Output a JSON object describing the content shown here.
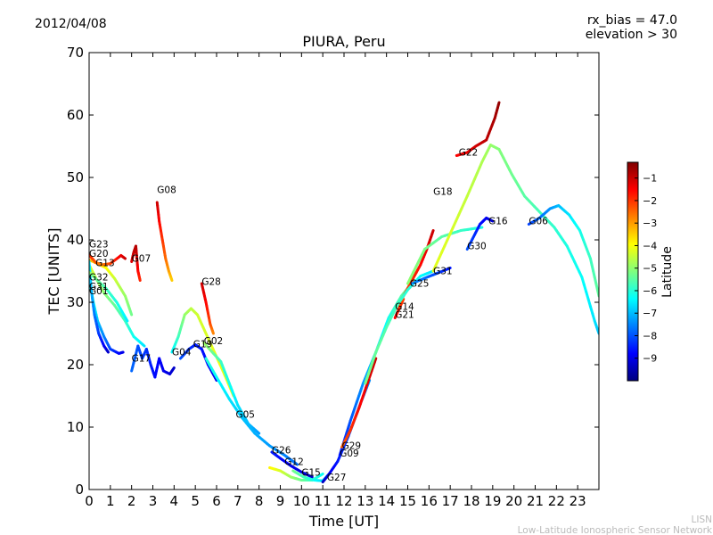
{
  "header": {
    "date": "2012/04/08",
    "rx_bias": "rx_bias = 47.0",
    "elevation": "elevation > 30"
  },
  "footer": {
    "line1": "LISN",
    "line2": "Low-Latitude Ionospheric Sensor Network"
  },
  "colorbar": {
    "label": "Latitude",
    "min": -10,
    "max": -0.3,
    "ticks": [
      "-1",
      "-2",
      "-3",
      "-4",
      "-5",
      "-6",
      "-7",
      "-8",
      "-9"
    ],
    "colors": [
      "#00007f",
      "#0000ff",
      "#007fff",
      "#00ffff",
      "#7fff7f",
      "#ffff00",
      "#ff7f00",
      "#ff0000",
      "#7f0000"
    ]
  },
  "chart_data": {
    "type": "line",
    "title": "PIURA, Peru",
    "xlabel": "Time [UT]",
    "ylabel": "TEC [UNITS]",
    "xlim": [
      0,
      24
    ],
    "ylim": [
      0,
      70
    ],
    "xticks": [
      "0",
      "1",
      "2",
      "3",
      "4",
      "5",
      "6",
      "7",
      "8",
      "9",
      "10",
      "11",
      "12",
      "13",
      "14",
      "15",
      "16",
      "17",
      "18",
      "19",
      "20",
      "21",
      "22",
      "23"
    ],
    "yticks": [
      "0",
      "10",
      "20",
      "30",
      "40",
      "50",
      "60",
      "70"
    ],
    "series": [
      {
        "name": "G23",
        "label_at": [
          0.0,
          38.8
        ],
        "points": [
          [
            0.0,
            36.8
          ],
          [
            0.4,
            36.2
          ],
          [
            0.8,
            35.5
          ],
          [
            1.2,
            33.8
          ],
          [
            1.7,
            31.0
          ],
          [
            2.0,
            28.0
          ]
        ],
        "lat": [
          -3.2,
          -3.5,
          -3.9,
          -4.4,
          -4.9,
          -5.3
        ]
      },
      {
        "name": "G20",
        "label_at": [
          0.0,
          37.3
        ],
        "points": [
          [
            0.0,
            37.6
          ],
          [
            0.3,
            36.4
          ],
          [
            0.6,
            36.0
          ],
          [
            1.0,
            36.2
          ],
          [
            1.5,
            37.5
          ],
          [
            1.7,
            37.0
          ]
        ],
        "lat": [
          -1.8,
          -2.3,
          -2.8,
          -2.2,
          -1.4,
          -1.0
        ]
      },
      {
        "name": "G13",
        "label_at": [
          0.3,
          35.8
        ],
        "points": [
          [
            0.0,
            36.0
          ],
          [
            0.3,
            34.0
          ],
          [
            0.7,
            31.5
          ],
          [
            1.2,
            29.5
          ],
          [
            1.7,
            27.0
          ],
          [
            2.1,
            24.5
          ],
          [
            2.6,
            23.0
          ]
        ],
        "lat": [
          -4.2,
          -4.6,
          -5.0,
          -5.4,
          -5.8,
          -6.2,
          -6.6
        ]
      },
      {
        "name": "G07",
        "label_at": [
          2.0,
          36.5
        ],
        "points": [
          [
            2.0,
            36.5
          ],
          [
            2.1,
            38.0
          ],
          [
            2.2,
            39.0
          ],
          [
            2.25,
            37.0
          ],
          [
            2.3,
            35.0
          ],
          [
            2.4,
            33.5
          ]
        ],
        "lat": [
          -1.2,
          -1.0,
          -0.8,
          -1.1,
          -1.5,
          -1.9
        ]
      },
      {
        "name": "G32",
        "label_at": [
          0.0,
          33.5
        ],
        "points": [
          [
            0.0,
            34.0
          ],
          [
            0.2,
            30.0
          ],
          [
            0.4,
            27.0
          ],
          [
            0.7,
            24.5
          ],
          [
            1.0,
            22.5
          ],
          [
            1.4,
            21.8
          ],
          [
            1.6,
            22.0
          ]
        ],
        "lat": [
          -5.5,
          -6.2,
          -6.9,
          -7.5,
          -8.1,
          -8.7,
          -9.0
        ]
      },
      {
        "name": "G01",
        "label_at": [
          0.0,
          31.3
        ],
        "points": [
          [
            0.0,
            36.5
          ],
          [
            0.1,
            32.0
          ],
          [
            0.25,
            28.0
          ],
          [
            0.45,
            25.0
          ],
          [
            0.7,
            23.0
          ],
          [
            0.9,
            22.0
          ]
        ],
        "lat": [
          -6.5,
          -7.0,
          -7.6,
          -8.2,
          -8.8,
          -9.3
        ]
      },
      {
        "name": "G31",
        "label_at": [
          0.0,
          32.0
        ],
        "points": [
          [
            0.0,
            34.8
          ],
          [
            0.3,
            33.8
          ],
          [
            0.8,
            32.2
          ],
          [
            1.3,
            30.0
          ],
          [
            1.8,
            27.0
          ]
        ],
        "lat": [
          -5.0,
          -5.3,
          -5.7,
          -6.1,
          -6.5
        ]
      },
      {
        "name": "G17",
        "label_at": [
          2.0,
          20.5
        ],
        "points": [
          [
            2.0,
            19.0
          ],
          [
            2.3,
            23.0
          ],
          [
            2.5,
            21.0
          ],
          [
            2.7,
            22.5
          ],
          [
            2.9,
            20.0
          ],
          [
            3.1,
            18.0
          ],
          [
            3.3,
            21.0
          ],
          [
            3.5,
            19.0
          ],
          [
            3.8,
            18.5
          ],
          [
            4.0,
            19.5
          ]
        ],
        "lat": [
          -7.8,
          -8.0,
          -8.2,
          -8.3,
          -8.5,
          -8.7,
          -8.8,
          -8.9,
          -9.1,
          -9.3
        ]
      },
      {
        "name": "G08",
        "label_at": [
          3.2,
          47.5
        ],
        "points": [
          [
            3.2,
            46.0
          ],
          [
            3.3,
            43.0
          ],
          [
            3.45,
            40.0
          ],
          [
            3.6,
            37.0
          ],
          [
            3.75,
            35.0
          ],
          [
            3.9,
            33.5
          ]
        ],
        "lat": [
          -1.0,
          -1.5,
          -2.0,
          -2.5,
          -3.0,
          -3.5
        ]
      },
      {
        "name": "G04",
        "label_at": [
          3.9,
          21.5
        ],
        "points": [
          [
            3.9,
            22.0
          ],
          [
            4.2,
            24.5
          ],
          [
            4.5,
            28.0
          ],
          [
            4.8,
            29.0
          ],
          [
            5.1,
            28.0
          ],
          [
            5.5,
            25.0
          ],
          [
            5.9,
            22.0
          ],
          [
            6.3,
            19.0
          ],
          [
            6.8,
            15.0
          ]
        ],
        "lat": [
          -6.5,
          -5.8,
          -5.0,
          -4.6,
          -4.4,
          -4.3,
          -4.2,
          -4.1,
          -4.0
        ]
      },
      {
        "name": "G19",
        "label_at": [
          4.9,
          22.8
        ],
        "points": [
          [
            4.3,
            21.0
          ],
          [
            4.7,
            22.5
          ],
          [
            5.0,
            23.2
          ],
          [
            5.3,
            22.5
          ],
          [
            5.6,
            20.0
          ],
          [
            6.0,
            17.5
          ]
        ],
        "lat": [
          -8.0,
          -8.3,
          -8.5,
          -8.6,
          -8.8,
          -9.0
        ]
      },
      {
        "name": "G02",
        "label_at": [
          5.4,
          23.3
        ],
        "points": [
          [
            5.4,
            23.5
          ],
          [
            5.8,
            22.0
          ],
          [
            6.2,
            20.5
          ],
          [
            6.6,
            17.0
          ],
          [
            7.0,
            13.5
          ],
          [
            7.5,
            10.5
          ],
          [
            8.0,
            9.0
          ]
        ],
        "lat": [
          -4.8,
          -5.3,
          -5.8,
          -6.2,
          -6.6,
          -7.0,
          -7.3
        ]
      },
      {
        "name": "G28",
        "label_at": [
          5.3,
          32.8
        ],
        "points": [
          [
            5.3,
            33.0
          ],
          [
            5.5,
            30.0
          ],
          [
            5.7,
            26.5
          ],
          [
            5.85,
            25.0
          ]
        ],
        "lat": [
          -1.0,
          -1.5,
          -2.2,
          -2.8
        ]
      },
      {
        "name": "G05",
        "label_at": [
          6.9,
          11.5
        ],
        "points": [
          [
            5.5,
            21.0
          ],
          [
            6.0,
            18.0
          ],
          [
            6.6,
            14.5
          ],
          [
            7.2,
            11.5
          ],
          [
            7.8,
            9.0
          ],
          [
            8.5,
            7.0
          ],
          [
            9.2,
            5.5
          ],
          [
            9.8,
            4.0
          ]
        ],
        "lat": [
          -6.0,
          -6.3,
          -6.6,
          -6.9,
          -7.1,
          -7.3,
          -7.5,
          -7.7
        ]
      },
      {
        "name": "G26",
        "label_at": [
          8.6,
          5.8
        ],
        "points": [
          [
            8.6,
            6.0
          ],
          [
            9.0,
            5.0
          ],
          [
            9.5,
            3.8
          ],
          [
            10.0,
            2.8
          ],
          [
            10.5,
            2.0
          ]
        ],
        "lat": [
          -8.5,
          -8.7,
          -8.9,
          -9.1,
          -9.3
        ]
      },
      {
        "name": "G12",
        "label_at": [
          9.2,
          3.9
        ],
        "points": [
          [
            8.5,
            3.5
          ],
          [
            9.0,
            3.0
          ],
          [
            9.5,
            2.0
          ],
          [
            10.0,
            1.5
          ],
          [
            10.5,
            1.5
          ],
          [
            11.0,
            2.5
          ]
        ],
        "lat": [
          -3.8,
          -4.3,
          -4.8,
          -5.3,
          -5.8,
          -6.3
        ]
      },
      {
        "name": "G15",
        "label_at": [
          10.0,
          2.2
        ],
        "points": [
          [
            9.6,
            3.0
          ],
          [
            10.1,
            2.0
          ],
          [
            10.6,
            1.5
          ],
          [
            11.0,
            1.4
          ],
          [
            11.3,
            2.5
          ]
        ],
        "lat": [
          -5.2,
          -5.7,
          -6.2,
          -6.7,
          -7.2
        ]
      },
      {
        "name": "G27",
        "label_at": [
          11.2,
          1.4
        ],
        "points": [
          [
            11.0,
            1.2
          ],
          [
            11.3,
            2.5
          ],
          [
            11.7,
            4.5
          ],
          [
            12.2,
            8.5
          ],
          [
            12.8,
            14.0
          ],
          [
            13.2,
            17.5
          ]
        ],
        "lat": [
          -9.4,
          -9.0,
          -8.6,
          -8.2,
          -7.8,
          -7.4
        ]
      },
      {
        "name": "G09",
        "label_at": [
          11.8,
          5.3
        ],
        "points": [
          [
            11.8,
            5.5
          ],
          [
            12.3,
            11.0
          ],
          [
            12.9,
            17.0
          ],
          [
            13.5,
            22.0
          ],
          [
            14.1,
            27.5
          ],
          [
            14.7,
            31.0
          ],
          [
            15.3,
            33.5
          ]
        ],
        "lat": [
          -8.6,
          -8.0,
          -7.4,
          -6.8,
          -6.2,
          -5.6,
          -5.0
        ]
      },
      {
        "name": "G29",
        "label_at": [
          11.9,
          6.5
        ],
        "points": [
          [
            11.9,
            6.8
          ],
          [
            12.3,
            9.5
          ],
          [
            12.7,
            13.0
          ],
          [
            13.1,
            17.0
          ],
          [
            13.5,
            21.0
          ]
        ],
        "lat": [
          -2.4,
          -2.0,
          -1.6,
          -1.3,
          -1.0
        ]
      },
      {
        "name": "G21",
        "label_at": [
          14.4,
          27.5
        ],
        "points": [
          [
            14.4,
            27.5
          ],
          [
            14.6,
            29.0
          ],
          [
            14.8,
            30.5
          ]
        ],
        "lat": [
          -1.5,
          -1.8,
          -2.1
        ]
      },
      {
        "name": "G14",
        "label_at": [
          14.4,
          28.8
        ],
        "points": [
          [
            14.4,
            28.8
          ],
          [
            14.8,
            31.0
          ],
          [
            15.2,
            33.5
          ],
          [
            15.6,
            36.0
          ],
          [
            15.9,
            38.5
          ],
          [
            16.2,
            41.5
          ]
        ],
        "lat": [
          -2.5,
          -2.2,
          -1.9,
          -1.6,
          -1.3,
          -1.0
        ]
      },
      {
        "name": "G25",
        "label_at": [
          15.1,
          32.5
        ],
        "points": [
          [
            13.0,
            17.0
          ],
          [
            13.5,
            22.0
          ],
          [
            14.0,
            26.0
          ],
          [
            14.5,
            29.5
          ],
          [
            15.0,
            32.0
          ],
          [
            15.6,
            34.2
          ],
          [
            16.2,
            35.0
          ]
        ],
        "lat": [
          -5.2,
          -5.4,
          -5.6,
          -5.8,
          -6.0,
          -6.3,
          -6.6
        ]
      },
      {
        "name": "G31",
        "label_at": [
          16.2,
          34.5
        ],
        "points": [
          [
            15.2,
            33.0
          ],
          [
            15.9,
            34.0
          ],
          [
            16.5,
            34.8
          ],
          [
            17.0,
            35.5
          ]
        ],
        "lat": [
          -7.4,
          -7.8,
          -8.2,
          -8.6
        ]
      },
      {
        "name": "G18",
        "label_at": [
          16.2,
          47.2
        ],
        "points": [
          [
            15.0,
            33.0
          ],
          [
            15.8,
            38.5
          ],
          [
            16.6,
            40.5
          ],
          [
            17.5,
            41.5
          ],
          [
            18.5,
            42.0
          ]
        ],
        "lat": [
          -5.0,
          -5.2,
          -5.5,
          -5.8,
          -6.1
        ]
      },
      {
        "name": "G22",
        "label_at": [
          17.4,
          53.5
        ],
        "points": [
          [
            17.3,
            53.5
          ],
          [
            17.8,
            54.0
          ],
          [
            18.2,
            55.0
          ],
          [
            18.7,
            56.0
          ],
          [
            19.1,
            59.5
          ],
          [
            19.3,
            62.0
          ]
        ],
        "lat": [
          -1.5,
          -1.3,
          -1.1,
          -0.9,
          -0.7,
          -0.5
        ]
      },
      {
        "name": "G30",
        "label_at": [
          17.8,
          38.5
        ],
        "points": [
          [
            17.8,
            38.5
          ],
          [
            18.1,
            40.5
          ],
          [
            18.4,
            42.5
          ],
          [
            18.7,
            43.5
          ],
          [
            19.0,
            43.0
          ]
        ],
        "lat": [
          -8.0,
          -8.3,
          -8.6,
          -8.9,
          -9.2
        ]
      },
      {
        "name": "G16",
        "label_at": [
          18.8,
          42.5
        ],
        "points": [
          [
            16.2,
            35.0
          ],
          [
            17.0,
            41.0
          ],
          [
            17.8,
            47.0
          ],
          [
            18.5,
            52.5
          ],
          [
            18.9,
            55.2
          ],
          [
            19.3,
            54.5
          ],
          [
            19.9,
            50.5
          ],
          [
            20.5,
            47.0
          ],
          [
            21.2,
            44.5
          ],
          [
            21.9,
            42.0
          ],
          [
            22.5,
            39.0
          ],
          [
            23.2,
            34.0
          ],
          [
            23.8,
            27.0
          ],
          [
            24.0,
            25.0
          ]
        ],
        "lat": [
          -4.2,
          -4.3,
          -4.5,
          -4.7,
          -4.9,
          -5.1,
          -5.3,
          -5.5,
          -5.7,
          -5.9,
          -6.1,
          -6.3,
          -6.6,
          -6.9
        ]
      },
      {
        "name": "G06",
        "label_at": [
          20.7,
          42.5
        ],
        "points": [
          [
            20.7,
            42.5
          ],
          [
            21.2,
            43.5
          ],
          [
            21.7,
            45.0
          ],
          [
            22.1,
            45.5
          ],
          [
            22.6,
            44.0
          ],
          [
            23.1,
            41.5
          ],
          [
            23.6,
            37.0
          ],
          [
            24.0,
            31.0
          ]
        ],
        "lat": [
          -8.2,
          -7.8,
          -7.4,
          -7.0,
          -6.6,
          -6.2,
          -5.8,
          -5.4
        ]
      }
    ]
  }
}
